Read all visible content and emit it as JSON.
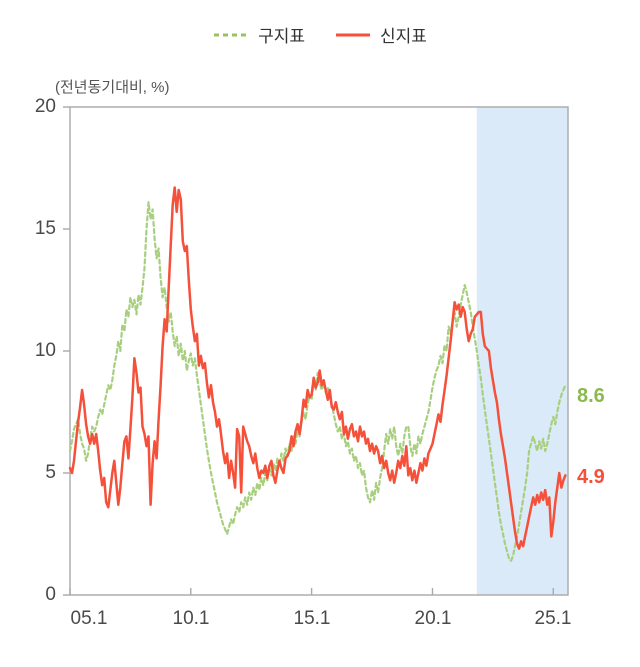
{
  "legend": [
    {
      "label": "구지표",
      "color": "#98c35f",
      "style": "dashed"
    },
    {
      "label": "신지표",
      "color": "#f4503a",
      "style": "solid"
    }
  ],
  "unit_label": "(전년동기대비, %)",
  "end_labels": {
    "old": {
      "text": "8.6",
      "color": "#8cb94e"
    },
    "new": {
      "text": "4.9",
      "color": "#f4503a"
    }
  },
  "chart_data": {
    "type": "line",
    "frequency": "monthly",
    "x_start": "05.1",
    "x_end": "25.7",
    "x_tick_labels": [
      "05.1",
      "10.1",
      "15.1",
      "20.1",
      "25.1"
    ],
    "x_tick_months": [
      0,
      60,
      120,
      180,
      240
    ],
    "y_tick_labels": [
      "20",
      "15",
      "10",
      "5",
      "0"
    ],
    "y_ticks": [
      0,
      5,
      10,
      15,
      20
    ],
    "ylim": [
      0,
      20
    ],
    "grid": false,
    "legend_position": "top-center",
    "highlight_region": {
      "from_month_index": 202,
      "to_month_index": 247,
      "color": "#daeaf8"
    },
    "series": [
      {
        "name": "구지표",
        "color": "#a8cf7f",
        "dash": true,
        "values": [
          5.9,
          6.3,
          6.8,
          7.0,
          7.2,
          6.6,
          6.2,
          6.0,
          5.5,
          5.8,
          6.4,
          6.9,
          6.7,
          6.9,
          7.3,
          7.6,
          7.4,
          7.8,
          8.2,
          8.6,
          8.4,
          8.8,
          9.4,
          9.8,
          10.4,
          10.0,
          11.1,
          10.8,
          11.7,
          11.4,
          12.2,
          11.8,
          12.1,
          11.5,
          12.3,
          11.9,
          12.6,
          13.4,
          15.0,
          16.1,
          15.4,
          15.8,
          14.6,
          13.8,
          14.2,
          13.0,
          12.2,
          12.6,
          11.8,
          11.2,
          11.6,
          10.8,
          10.2,
          10.6,
          9.8,
          10.3,
          9.6,
          10.0,
          9.2,
          9.6,
          9.9,
          9.4,
          9.7,
          9.0,
          8.4,
          7.8,
          7.2,
          6.6,
          6.0,
          5.5,
          5.0,
          4.6,
          4.2,
          3.8,
          3.5,
          3.2,
          2.9,
          2.7,
          2.5,
          2.8,
          3.1,
          2.9,
          3.3,
          3.6,
          3.4,
          3.8,
          3.6,
          4.0,
          3.7,
          4.2,
          3.9,
          4.4,
          4.1,
          4.6,
          4.3,
          4.8,
          4.5,
          5.0,
          4.7,
          5.2,
          4.9,
          5.4,
          5.1,
          5.6,
          5.3,
          5.8,
          5.5,
          6.0,
          5.7,
          6.2,
          5.9,
          6.5,
          6.2,
          6.8,
          6.5,
          7.1,
          7.5,
          7.2,
          7.8,
          8.2,
          8.0,
          8.8,
          8.4,
          9.1,
          8.7,
          8.4,
          8.7,
          8.3,
          8.5,
          8.1,
          7.8,
          7.4,
          7.0,
          6.7,
          6.9,
          6.4,
          6.6,
          6.1,
          6.3,
          5.8,
          6.0,
          5.5,
          5.7,
          5.2,
          5.4,
          4.9,
          5.1,
          4.4,
          4.0,
          3.8,
          4.3,
          3.9,
          4.6,
          4.2,
          4.8,
          5.2,
          5.9,
          6.6,
          6.2,
          6.8,
          6.4,
          6.9,
          6.1,
          5.7,
          6.2,
          5.8,
          6.5,
          6.9,
          6.9,
          6.1,
          5.7,
          6.2,
          5.8,
          6.5,
          6.2,
          6.6,
          6.9,
          7.2,
          7.5,
          8.0,
          8.5,
          8.9,
          9.2,
          9.4,
          9.8,
          9.5,
          10.25,
          10.0,
          11.0,
          10.7,
          11.2,
          11.6,
          11.0,
          11.4,
          11.9,
          12.3,
          12.7,
          12.4,
          12.0,
          11.6,
          11.0,
          10.5,
          10.0,
          9.4,
          8.9,
          8.2,
          7.6,
          7.0,
          6.4,
          5.8,
          5.2,
          4.6,
          4.0,
          3.4,
          2.9,
          2.5,
          2.1,
          1.8,
          1.5,
          1.4,
          1.6,
          2.0,
          2.4,
          2.9,
          3.4,
          3.9,
          4.4,
          5.0,
          5.9,
          6.2,
          6.5,
          6.2,
          5.9,
          6.3,
          6.0,
          6.4,
          5.9,
          6.2,
          6.6,
          7.0,
          7.3,
          7.0,
          7.5,
          7.9,
          8.2,
          8.4,
          8.6
        ]
      },
      {
        "name": "신지표",
        "color": "#f4503a",
        "dash": false,
        "values": [
          5.2,
          5.0,
          5.5,
          6.3,
          7.1,
          7.7,
          8.4,
          7.8,
          7.0,
          6.5,
          6.2,
          6.6,
          6.2,
          6.6,
          5.9,
          5.1,
          4.5,
          4.8,
          3.8,
          3.6,
          4.3,
          5.0,
          5.5,
          4.6,
          3.7,
          4.4,
          5.4,
          6.3,
          6.5,
          5.6,
          6.8,
          8.1,
          9.7,
          9.1,
          8.3,
          8.5,
          6.9,
          6.6,
          6.1,
          6.5,
          3.7,
          5.4,
          6.3,
          5.6,
          7.2,
          8.6,
          10.2,
          11.3,
          10.8,
          12.6,
          14.3,
          16.0,
          16.7,
          15.7,
          16.6,
          16.2,
          14.5,
          14.1,
          14.3,
          12.9,
          11.7,
          11.0,
          10.4,
          10.7,
          9.4,
          9.8,
          9.3,
          9.5,
          8.7,
          8.1,
          8.6,
          7.9,
          7.5,
          6.9,
          7.2,
          6.6,
          5.9,
          5.4,
          5.8,
          4.8,
          5.5,
          5.0,
          4.4,
          6.8,
          6.5,
          4.2,
          6.9,
          6.6,
          6.3,
          6.1,
          5.7,
          5.4,
          5.8,
          5.2,
          4.8,
          5.1,
          5.0,
          5.3,
          4.8,
          5.3,
          5.5,
          4.9,
          4.6,
          5.1,
          5.5,
          5.2,
          5.0,
          5.6,
          5.7,
          5.9,
          6.5,
          6.1,
          6.7,
          7.0,
          6.6,
          7.2,
          8.0,
          7.7,
          8.4,
          8.1,
          8.2,
          8.9,
          8.5,
          8.7,
          9.2,
          8.6,
          8.8,
          8.4,
          8.0,
          8.4,
          7.7,
          7.6,
          7.9,
          7.5,
          7.2,
          7.5,
          6.6,
          6.9,
          6.4,
          6.8,
          7.0,
          6.5,
          6.7,
          6.3,
          6.9,
          6.5,
          6.7,
          6.2,
          6.4,
          5.9,
          6.2,
          5.8,
          6.1,
          5.9,
          5.4,
          5.7,
          5.2,
          5.5,
          5.0,
          4.7,
          5.1,
          4.6,
          5.0,
          5.5,
          5.2,
          5.7,
          5.3,
          6.1,
          4.9,
          5.2,
          4.7,
          5.1,
          4.6,
          5.0,
          5.4,
          5.1,
          5.6,
          5.3,
          5.8,
          6.0,
          6.2,
          6.6,
          7.0,
          7.4,
          7.1,
          7.8,
          8.4,
          9.0,
          9.7,
          10.4,
          11.2,
          12.0,
          11.7,
          11.9,
          11.4,
          11.8,
          11.6,
          10.9,
          10.4,
          10.7,
          10.9,
          11.4,
          11.5,
          11.6,
          11.6,
          10.7,
          10.2,
          10.1,
          10.0,
          9.3,
          8.8,
          8.3,
          7.9,
          7.2,
          6.6,
          6.1,
          5.6,
          5.0,
          4.4,
          3.8,
          3.2,
          2.6,
          2.1,
          1.9,
          2.2,
          2.0,
          2.4,
          2.8,
          3.2,
          3.6,
          4.0,
          3.7,
          4.1,
          3.8,
          4.2,
          3.9,
          4.3,
          3.7,
          4.0,
          2.4,
          3.0,
          3.8,
          4.4,
          5.0,
          4.4,
          4.7,
          4.9
        ]
      }
    ]
  }
}
